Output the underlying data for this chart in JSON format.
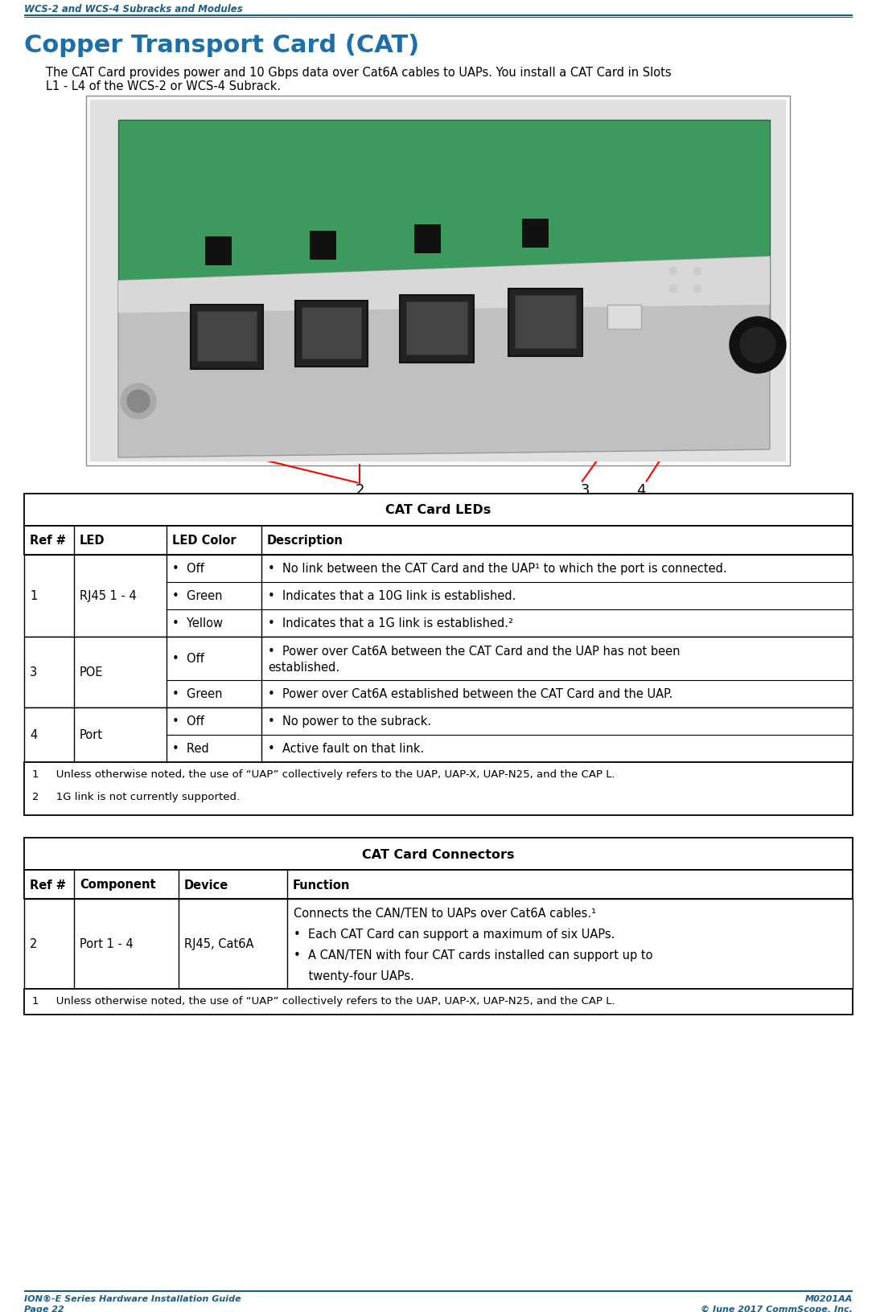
{
  "page_header_text": "WCS-2 and WCS-4 Subracks and Modules",
  "page_footer_left1": "ION®-E Series Hardware Installation Guide",
  "page_footer_left2": "Page 22",
  "page_footer_right1": "M0201AA",
  "page_footer_right2": "© June 2017 CommScope, Inc.",
  "header_color": "#1b5e8a",
  "section_title": "Copper Transport Card (CAT)",
  "section_title_color": "#1b6faa",
  "body_text_line1": "The CAT Card provides power and 10 Gbps data over Cat6A cables to UAPs. You install a CAT Card in Slots",
  "body_text_line2": "L1 - L4 of the WCS-2 or WCS-4 Subrack.",
  "table1_title": "CAT Card LEDs",
  "table1_headers": [
    "Ref #",
    "LED",
    "LED Color",
    "Description"
  ],
  "table2_title": "CAT Card Connectors",
  "table2_headers": [
    "Ref #",
    "Component",
    "Device",
    "Function"
  ],
  "page_footer_left1_text": "ION®-E Series Hardware Installation Guide",
  "page_footer_left2_text": "Page 22",
  "page_footer_right1_text": "M0201AA",
  "page_footer_right2_text": "© June 2017 CommScope, Inc."
}
